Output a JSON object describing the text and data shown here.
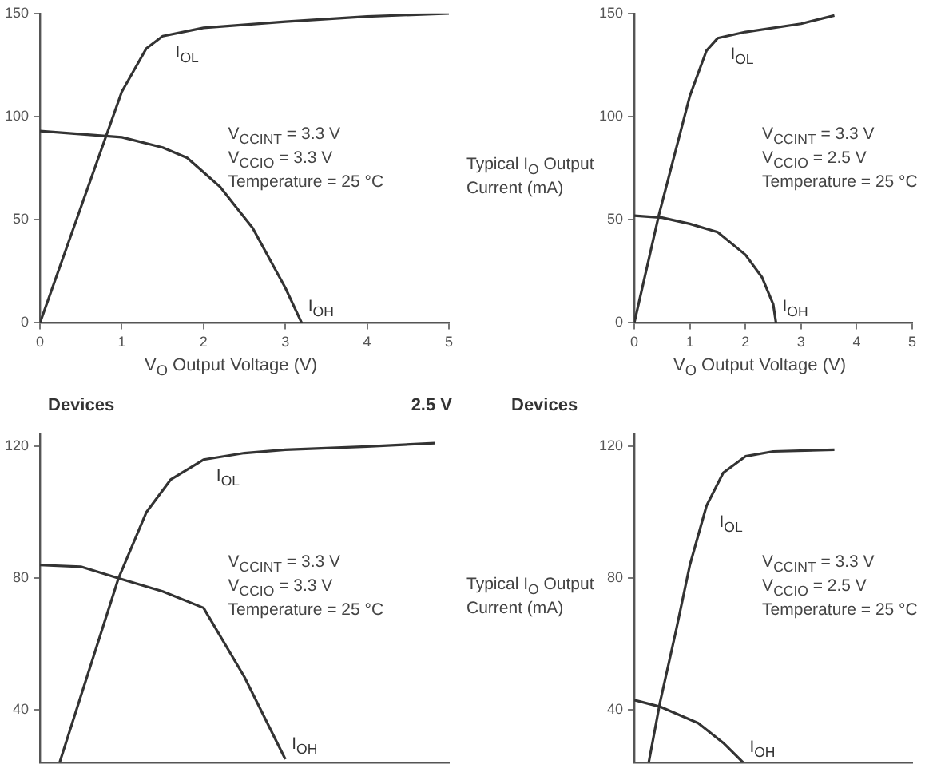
{
  "chart_data": [
    {
      "type": "line",
      "xlabel": "V$_{O}$ Output Voltage (V)",
      "xlim": [
        0,
        5
      ],
      "xticks": [
        0,
        1,
        2,
        3,
        4,
        5
      ],
      "ylim": [
        0,
        150
      ],
      "yticks": [
        0,
        50,
        100,
        150
      ],
      "marker": "none",
      "annotations": [
        "V$_{CCINT}$ = 3.3 V",
        "V$_{CCIO}$ = 3.3 V",
        "Temperature = 25 °C"
      ],
      "series": [
        {
          "name": "I$_{OL}$",
          "color": "#333333",
          "x": [
            0,
            0.5,
            1,
            1.3,
            1.5,
            2,
            3,
            4,
            5
          ],
          "values": [
            0,
            56,
            112,
            133,
            139,
            143,
            146,
            148.5,
            150
          ]
        },
        {
          "name": "I$_{OH}$",
          "color": "#333333",
          "x": [
            0,
            1,
            1.5,
            1.8,
            2,
            2.2,
            2.6,
            3,
            3.2
          ],
          "values": [
            93,
            90,
            85,
            80,
            73,
            66,
            46,
            17,
            0
          ]
        }
      ]
    },
    {
      "type": "line",
      "xlabel": "V$_{O}$ Output Voltage (V)",
      "ylabel": "Typical I$_{O}$ Output Current (mA)",
      "xlim": [
        0,
        5
      ],
      "xticks": [
        0,
        1,
        2,
        3,
        4,
        5
      ],
      "ylim": [
        0,
        150
      ],
      "yticks": [
        0,
        50,
        100,
        150
      ],
      "marker": "none",
      "annotations": [
        "V$_{CCINT}$ = 3.3 V",
        "V$_{CCIO}$ = 2.5 V",
        "Temperature = 25 °C"
      ],
      "series": [
        {
          "name": "I$_{OL}$",
          "color": "#333333",
          "x": [
            0,
            0.44,
            1,
            1.3,
            1.5,
            2,
            3,
            3.6
          ],
          "values": [
            0,
            52,
            110,
            132,
            138,
            141,
            145,
            149
          ]
        },
        {
          "name": "I$_{OH}$",
          "color": "#333333",
          "x": [
            0,
            0.5,
            1,
            1.5,
            2,
            2.3,
            2.5,
            2.55
          ],
          "values": [
            52,
            51,
            48,
            44,
            33,
            22,
            9,
            0
          ]
        }
      ]
    },
    {
      "type": "line",
      "title": "Devices",
      "subtitle": "2.5 V",
      "xlim": [
        0,
        5
      ],
      "ylim": [
        24,
        124
      ],
      "yticks": [
        40,
        80,
        120
      ],
      "tick_labels": "y",
      "marker": "none",
      "annotations": [
        "V$_{CCINT}$ = 3.3 V",
        "V$_{CCIO}$ = 3.3 V",
        "Temperature = 25 °C"
      ],
      "series": [
        {
          "name": "I$_{OL}$",
          "color": "#333333",
          "x": [
            0.24,
            0.6,
            0.96,
            1.3,
            1.6,
            2,
            2.5,
            3,
            4,
            4.83
          ],
          "values": [
            24,
            52,
            80,
            100,
            110,
            116,
            118,
            119,
            120,
            121
          ]
        },
        {
          "name": "I$_{OH}$",
          "color": "#333333",
          "x": [
            0,
            0.5,
            0.96,
            1.5,
            2,
            2.5,
            3
          ],
          "values": [
            84,
            83.5,
            80,
            76,
            71,
            50,
            25
          ]
        }
      ]
    },
    {
      "type": "line",
      "title": "Devices",
      "ylabel": "Typical I$_{O}$ Output Current (mA)",
      "xlim": [
        0,
        5
      ],
      "ylim": [
        24,
        124
      ],
      "yticks": [
        40,
        80,
        120
      ],
      "tick_labels": "y",
      "marker": "none",
      "annotations": [
        "V$_{CCINT}$ = 3.3 V",
        "V$_{CCIO}$ = 2.5 V",
        "Temperature = 25 °C"
      ],
      "series": [
        {
          "name": "I$_{OL}$",
          "color": "#333333",
          "x": [
            0.26,
            0.46,
            0.75,
            1,
            1.3,
            1.6,
            2,
            2.5,
            3.6
          ],
          "values": [
            24,
            42,
            64,
            84,
            102,
            112,
            117,
            118.5,
            119
          ]
        },
        {
          "name": "I$_{OH}$",
          "color": "#333333",
          "x": [
            0,
            0.46,
            1.15,
            1.6,
            1.96
          ],
          "values": [
            43,
            41,
            36,
            30,
            24
          ]
        }
      ]
    }
  ]
}
